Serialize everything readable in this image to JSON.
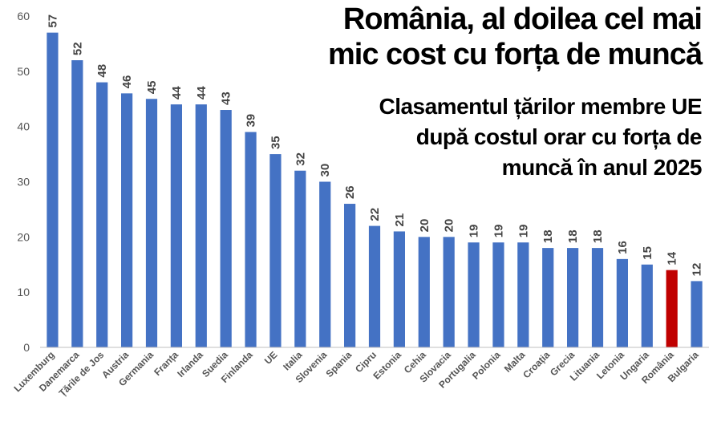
{
  "colors": {
    "bar": "#4472c4",
    "highlight": "#c00000",
    "axis": "#bfbfbf"
  },
  "chart_data": {
    "type": "bar",
    "title": "România, al doilea cel mai mic cost cu forța de muncă",
    "title_lines": [
      "România, al doilea cel mai",
      "mic cost cu forța de muncă"
    ],
    "subtitle": "Clasamentul țărilor membre UE după costul orar cu forța de muncă în anul 2025",
    "subtitle_lines": [
      "Clasamentul țărilor membre UE",
      "după costul orar cu forța de",
      "muncă în anul 2025"
    ],
    "categories": [
      "Luxemburg",
      "Danemarca",
      "Țările de Jos",
      "Austria",
      "Germania",
      "Franța",
      "Irlanda",
      "Suedia",
      "Finlanda",
      "UE",
      "Italia",
      "Slovenia",
      "Spania",
      "Cipru",
      "Estonia",
      "Cehia",
      "Slovacia",
      "Portugalia",
      "Polonia",
      "Malta",
      "Croația",
      "Grecia",
      "Lituania",
      "Letonia",
      "Ungaria",
      "România",
      "Bulgaria"
    ],
    "values": [
      57,
      52,
      48,
      46,
      45,
      44,
      44,
      43,
      39,
      35,
      32,
      30,
      26,
      22,
      21,
      20,
      20,
      19,
      19,
      19,
      18,
      18,
      18,
      16,
      15,
      14,
      12
    ],
    "highlight": "România",
    "yticks": [
      0,
      10,
      20,
      30,
      40,
      50,
      60
    ],
    "ylim": [
      0,
      60
    ],
    "xlabel": "",
    "ylabel": "",
    "grid": false,
    "data_labels": true
  }
}
